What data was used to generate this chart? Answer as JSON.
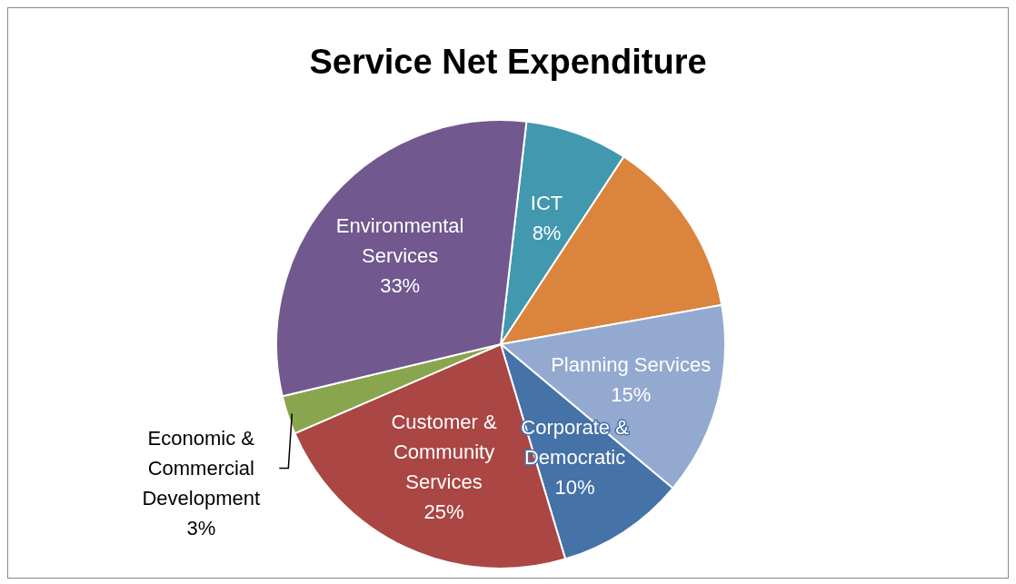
{
  "chart_data": {
    "type": "pie",
    "title": "Service Net Expenditure",
    "categories": [
      "ICT",
      null,
      "Planning Services",
      "Corporate & Democratic",
      "Customer & Community Services",
      "Economic & Commercial Development",
      "Environmental Services"
    ],
    "values": [
      8,
      14,
      15,
      10,
      25,
      3,
      33
    ],
    "value_labels": [
      "8%",
      null,
      "15%",
      "10%",
      "25%",
      "3%",
      "33%"
    ],
    "colors": [
      "#4198af",
      "#db843d",
      "#93a9cf",
      "#4572a7",
      "#aa4643",
      "#89a54e",
      "#71588f"
    ],
    "legend": false
  }
}
